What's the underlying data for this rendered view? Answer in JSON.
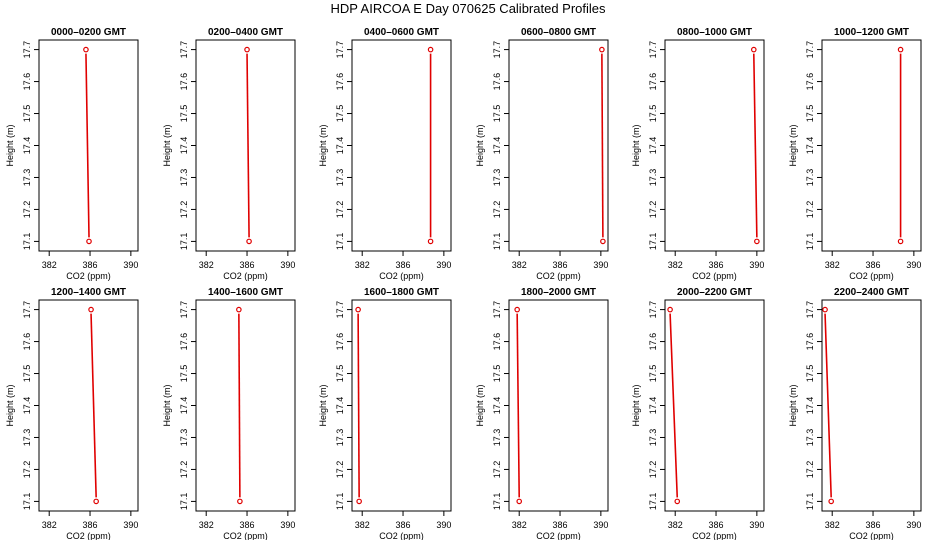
{
  "figure": {
    "title": "HDP  AIRCOA E  Day 070625  Calibrated Profiles"
  },
  "colors": {
    "profile_line": "#e00000",
    "marker": "#e00000",
    "axis": "#000000"
  },
  "chart_data": [
    {
      "type": "line",
      "title": "0000–0200 GMT",
      "xlabel": "CO2 (ppm)",
      "ylabel": "Height (m)",
      "xlim": [
        381,
        390.7
      ],
      "ylim": [
        17.07,
        17.73
      ],
      "xticks": [
        382,
        386,
        390
      ],
      "yticks": [
        17.1,
        17.2,
        17.3,
        17.4,
        17.5,
        17.6,
        17.7
      ],
      "series": [
        {
          "x": [
            385.6,
            385.9
          ],
          "y": [
            17.7,
            17.1
          ]
        }
      ]
    },
    {
      "type": "line",
      "title": "0200–0400 GMT",
      "xlabel": "CO2 (ppm)",
      "ylabel": "Height (m)",
      "xlim": [
        381,
        390.7
      ],
      "ylim": [
        17.07,
        17.73
      ],
      "xticks": [
        382,
        386,
        390
      ],
      "yticks": [
        17.1,
        17.2,
        17.3,
        17.4,
        17.5,
        17.6,
        17.7
      ],
      "series": [
        {
          "x": [
            386.0,
            386.2
          ],
          "y": [
            17.7,
            17.1
          ]
        }
      ]
    },
    {
      "type": "line",
      "title": "0400–0600 GMT",
      "xlabel": "CO2 (ppm)",
      "ylabel": "Height (m)",
      "xlim": [
        381,
        390.7
      ],
      "ylim": [
        17.07,
        17.73
      ],
      "xticks": [
        382,
        386,
        390
      ],
      "yticks": [
        17.1,
        17.2,
        17.3,
        17.4,
        17.5,
        17.6,
        17.7
      ],
      "series": [
        {
          "x": [
            388.7,
            388.7
          ],
          "y": [
            17.7,
            17.1
          ]
        }
      ]
    },
    {
      "type": "line",
      "title": "0600–0800 GMT",
      "xlabel": "CO2 (ppm)",
      "ylabel": "Height (m)",
      "xlim": [
        381,
        390.7
      ],
      "ylim": [
        17.07,
        17.73
      ],
      "xticks": [
        382,
        386,
        390
      ],
      "yticks": [
        17.1,
        17.2,
        17.3,
        17.4,
        17.5,
        17.6,
        17.7
      ],
      "series": [
        {
          "x": [
            390.1,
            390.2
          ],
          "y": [
            17.7,
            17.1
          ]
        }
      ]
    },
    {
      "type": "line",
      "title": "0800–1000 GMT",
      "xlabel": "CO2 (ppm)",
      "ylabel": "Height (m)",
      "xlim": [
        381,
        390.7
      ],
      "ylim": [
        17.07,
        17.73
      ],
      "xticks": [
        382,
        386,
        390
      ],
      "yticks": [
        17.1,
        17.2,
        17.3,
        17.4,
        17.5,
        17.6,
        17.7
      ],
      "series": [
        {
          "x": [
            389.7,
            390.0
          ],
          "y": [
            17.7,
            17.1
          ]
        }
      ]
    },
    {
      "type": "line",
      "title": "1000–1200 GMT",
      "xlabel": "CO2 (ppm)",
      "ylabel": "Height (m)",
      "xlim": [
        381,
        390.7
      ],
      "ylim": [
        17.07,
        17.73
      ],
      "xticks": [
        382,
        386,
        390
      ],
      "yticks": [
        17.1,
        17.2,
        17.3,
        17.4,
        17.5,
        17.6,
        17.7
      ],
      "series": [
        {
          "x": [
            388.7,
            388.7
          ],
          "y": [
            17.7,
            17.1
          ]
        }
      ]
    },
    {
      "type": "line",
      "title": "1200–1400 GMT",
      "xlabel": "CO2 (ppm)",
      "ylabel": "Height (m)",
      "xlim": [
        381,
        390.7
      ],
      "ylim": [
        17.07,
        17.73
      ],
      "xticks": [
        382,
        386,
        390
      ],
      "yticks": [
        17.1,
        17.2,
        17.3,
        17.4,
        17.5,
        17.6,
        17.7
      ],
      "series": [
        {
          "x": [
            386.1,
            386.6
          ],
          "y": [
            17.7,
            17.1
          ]
        }
      ]
    },
    {
      "type": "line",
      "title": "1400–1600 GMT",
      "xlabel": "CO2 (ppm)",
      "ylabel": "Height (m)",
      "xlim": [
        381,
        390.7
      ],
      "ylim": [
        17.07,
        17.73
      ],
      "xticks": [
        382,
        386,
        390
      ],
      "yticks": [
        17.1,
        17.2,
        17.3,
        17.4,
        17.5,
        17.6,
        17.7
      ],
      "series": [
        {
          "x": [
            385.2,
            385.3
          ],
          "y": [
            17.7,
            17.1
          ]
        }
      ]
    },
    {
      "type": "line",
      "title": "1600–1800 GMT",
      "xlabel": "CO2 (ppm)",
      "ylabel": "Height (m)",
      "xlim": [
        381,
        390.7
      ],
      "ylim": [
        17.07,
        17.73
      ],
      "xticks": [
        382,
        386,
        390
      ],
      "yticks": [
        17.1,
        17.2,
        17.3,
        17.4,
        17.5,
        17.6,
        17.7
      ],
      "series": [
        {
          "x": [
            381.6,
            381.7
          ],
          "y": [
            17.7,
            17.1
          ]
        }
      ]
    },
    {
      "type": "line",
      "title": "1800–2000 GMT",
      "xlabel": "CO2 (ppm)",
      "ylabel": "Height (m)",
      "xlim": [
        381,
        390.7
      ],
      "ylim": [
        17.07,
        17.73
      ],
      "xticks": [
        382,
        386,
        390
      ],
      "yticks": [
        17.1,
        17.2,
        17.3,
        17.4,
        17.5,
        17.6,
        17.7
      ],
      "series": [
        {
          "x": [
            381.8,
            382.0
          ],
          "y": [
            17.7,
            17.1
          ]
        }
      ]
    },
    {
      "type": "line",
      "title": "2000–2200 GMT",
      "xlabel": "CO2 (ppm)",
      "ylabel": "Height (m)",
      "xlim": [
        381,
        390.7
      ],
      "ylim": [
        17.07,
        17.73
      ],
      "xticks": [
        382,
        386,
        390
      ],
      "yticks": [
        17.1,
        17.2,
        17.3,
        17.4,
        17.5,
        17.6,
        17.7
      ],
      "series": [
        {
          "x": [
            381.5,
            382.2
          ],
          "y": [
            17.7,
            17.1
          ]
        }
      ]
    },
    {
      "type": "line",
      "title": "2200–2400 GMT",
      "xlabel": "CO2 (ppm)",
      "ylabel": "Height (m)",
      "xlim": [
        381,
        390.7
      ],
      "ylim": [
        17.07,
        17.73
      ],
      "xticks": [
        382,
        386,
        390
      ],
      "yticks": [
        17.1,
        17.2,
        17.3,
        17.4,
        17.5,
        17.6,
        17.7
      ],
      "series": [
        {
          "x": [
            381.3,
            381.9
          ],
          "y": [
            17.7,
            17.1
          ]
        }
      ]
    }
  ]
}
